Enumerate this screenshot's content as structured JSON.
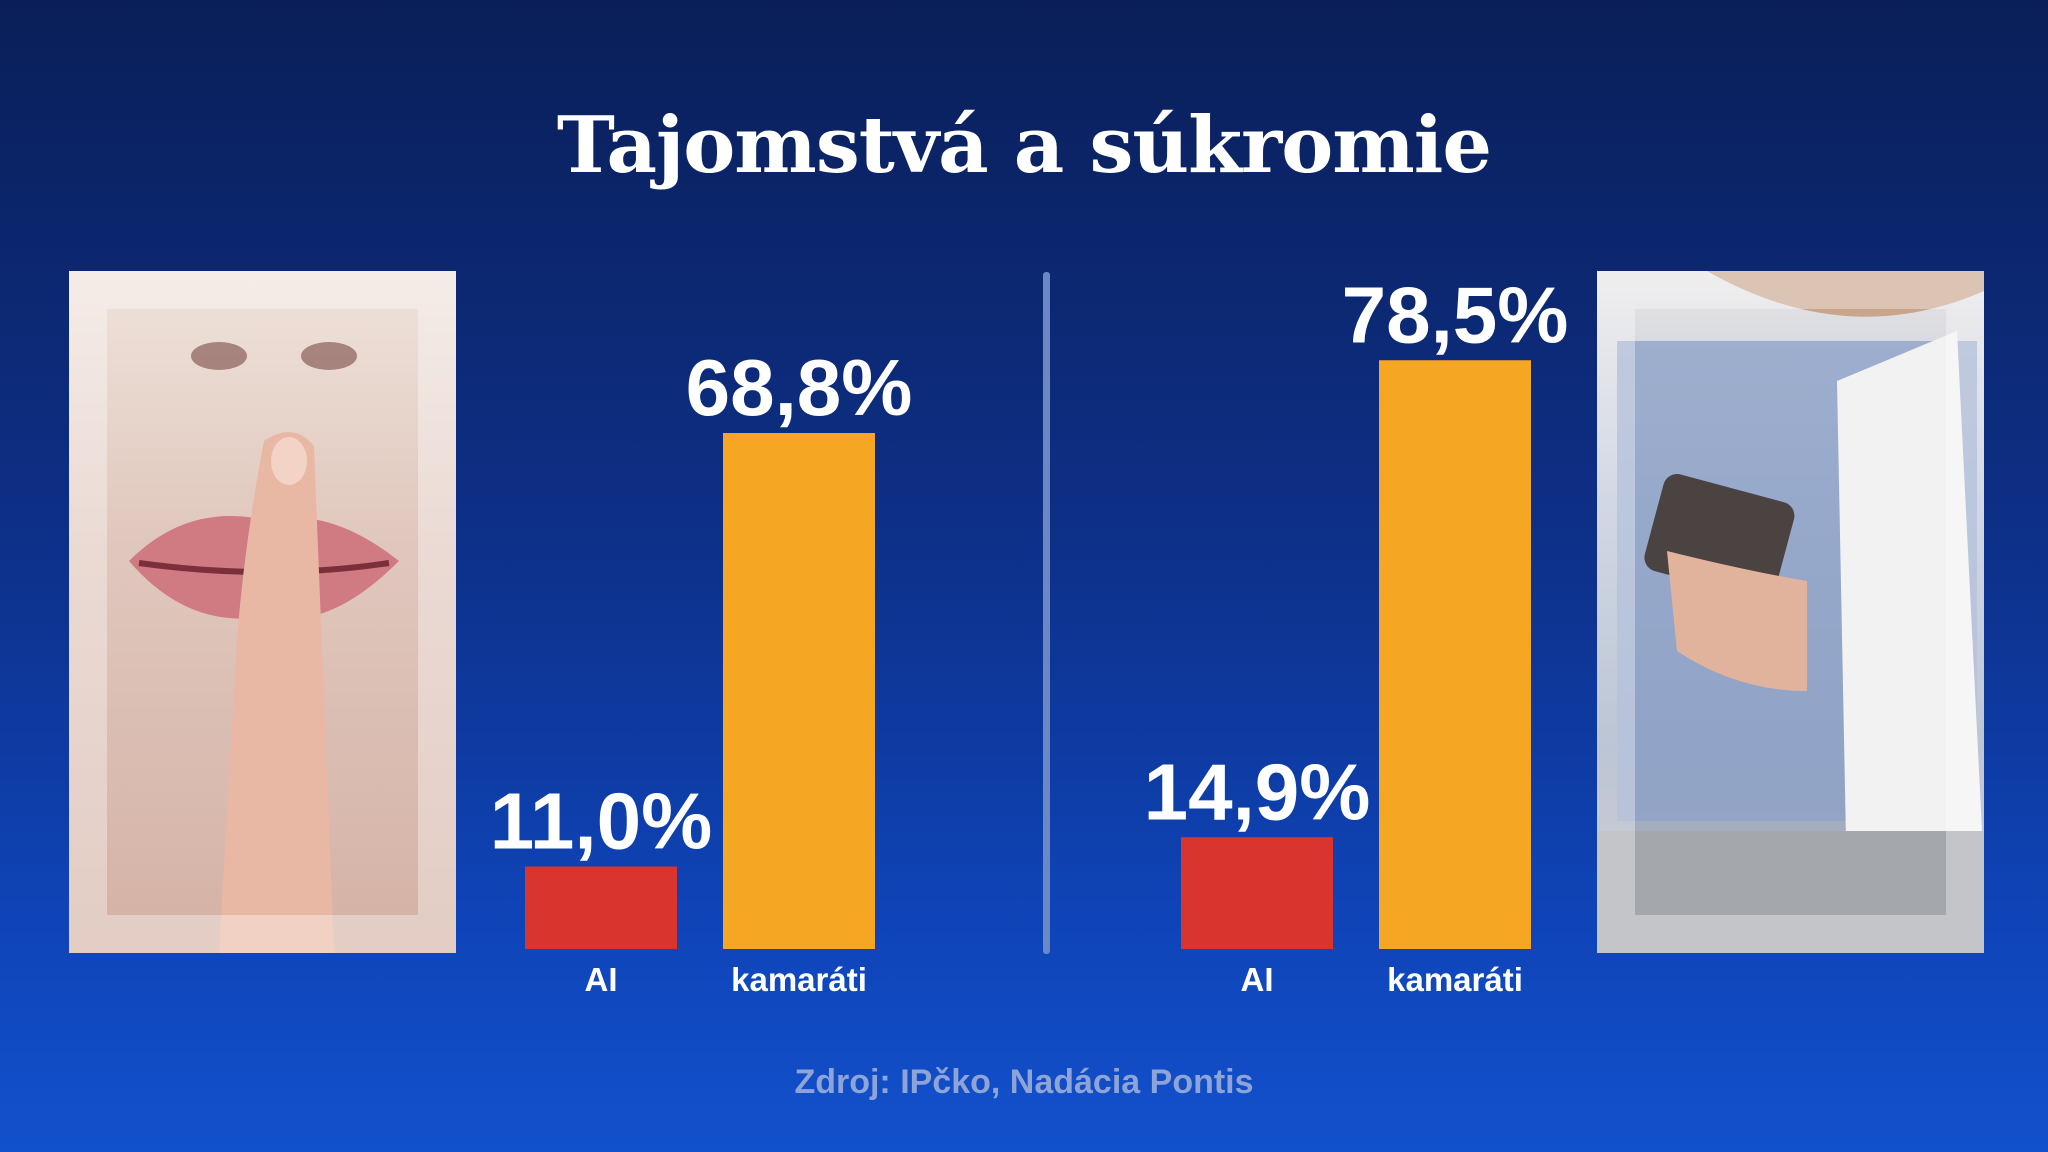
{
  "title": "Tajomstvá a súkromie",
  "source": "Zdroj: IPčko, Nadácia Pontis",
  "colors": {
    "ai": "#d9342e",
    "friends": "#f5a623",
    "background_top": "#0a1f58",
    "background_bottom": "#1251cc"
  },
  "images": {
    "left": "shush-finger-on-lips-photo",
    "right": "woman-holding-phone-and-document-photo"
  },
  "chart_data": [
    {
      "type": "bar",
      "categories": [
        "AI",
        "kamaráti"
      ],
      "values": [
        11.0,
        68.8
      ],
      "value_labels": [
        "11,0%",
        "68,8%"
      ],
      "ylim": [
        0,
        100
      ]
    },
    {
      "type": "bar",
      "categories": [
        "AI",
        "kamaráti"
      ],
      "values": [
        14.9,
        78.5
      ],
      "value_labels": [
        "14,9%",
        "78,5%"
      ],
      "ylim": [
        0,
        100
      ]
    }
  ]
}
